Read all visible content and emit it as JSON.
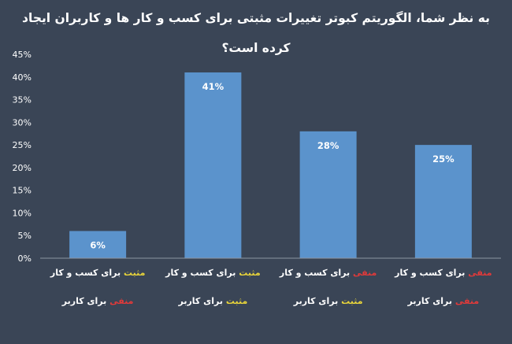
{
  "chart_data": {
    "type": "bar",
    "title": "به نظر شما، الگوریتم کبوتر تغییرات مثبتی برای کسب و کار ها و کاربران ایجاد کرده است؟",
    "categories": [
      {
        "business_sentiment": "مثبت",
        "business_suffix": "برای کسب و کار",
        "user_sentiment": "منفی",
        "user_suffix": "برای کاربر"
      },
      {
        "business_sentiment": "مثبت",
        "business_suffix": "برای کسب و کار",
        "user_sentiment": "مثبت",
        "user_suffix": "برای کاربر"
      },
      {
        "business_sentiment": "منفی",
        "business_suffix": "برای کسب و کار",
        "user_sentiment": "مثبت",
        "user_suffix": "برای کاربر"
      },
      {
        "business_sentiment": "منفی",
        "business_suffix": "برای کسب و کار",
        "user_sentiment": "منفی",
        "user_suffix": "برای کاربر"
      }
    ],
    "values": [
      6,
      41,
      28,
      25
    ],
    "value_labels": [
      "6%",
      "41%",
      "28%",
      "25%"
    ],
    "y_ticks": [
      "0%",
      "5%",
      "10%",
      "15%",
      "20%",
      "25%",
      "30%",
      "35%",
      "40%",
      "45%"
    ],
    "ylim": [
      0,
      45
    ],
    "grid": false,
    "colors": {
      "background": "#3a4556",
      "bar": "#5b93cc",
      "axis": "#8c96a3",
      "positive": "#e8d43a",
      "negative": "#e03a3a"
    }
  }
}
